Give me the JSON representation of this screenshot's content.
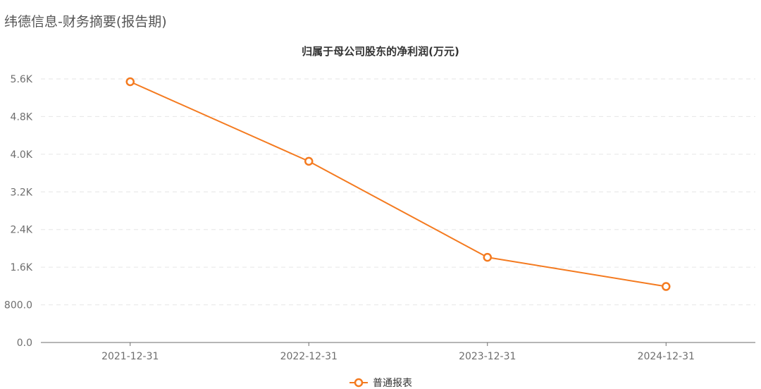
{
  "header": {
    "page_title": "纬德信息-财务摘要(报告期)"
  },
  "chart_data": {
    "type": "line",
    "title": "归属于母公司股东的净利润(万元)",
    "categories": [
      "2021-12-31",
      "2022-12-31",
      "2023-12-31",
      "2024-12-31"
    ],
    "series": [
      {
        "name": "普通报表",
        "values": [
          5540,
          3850,
          1810,
          1190
        ],
        "color": "#f47a1f"
      }
    ],
    "y_ticks": [
      {
        "value": 0,
        "label": "0.0"
      },
      {
        "value": 800,
        "label": "800.0"
      },
      {
        "value": 1600,
        "label": "1.6K"
      },
      {
        "value": 2400,
        "label": "2.4K"
      },
      {
        "value": 3200,
        "label": "3.2K"
      },
      {
        "value": 4000,
        "label": "4.0K"
      },
      {
        "value": 4800,
        "label": "4.8K"
      },
      {
        "value": 5600,
        "label": "5.6K"
      }
    ],
    "ylim": [
      0,
      5600
    ],
    "grid": true,
    "legend_position": "bottom-center",
    "xlabel": "",
    "ylabel": ""
  }
}
